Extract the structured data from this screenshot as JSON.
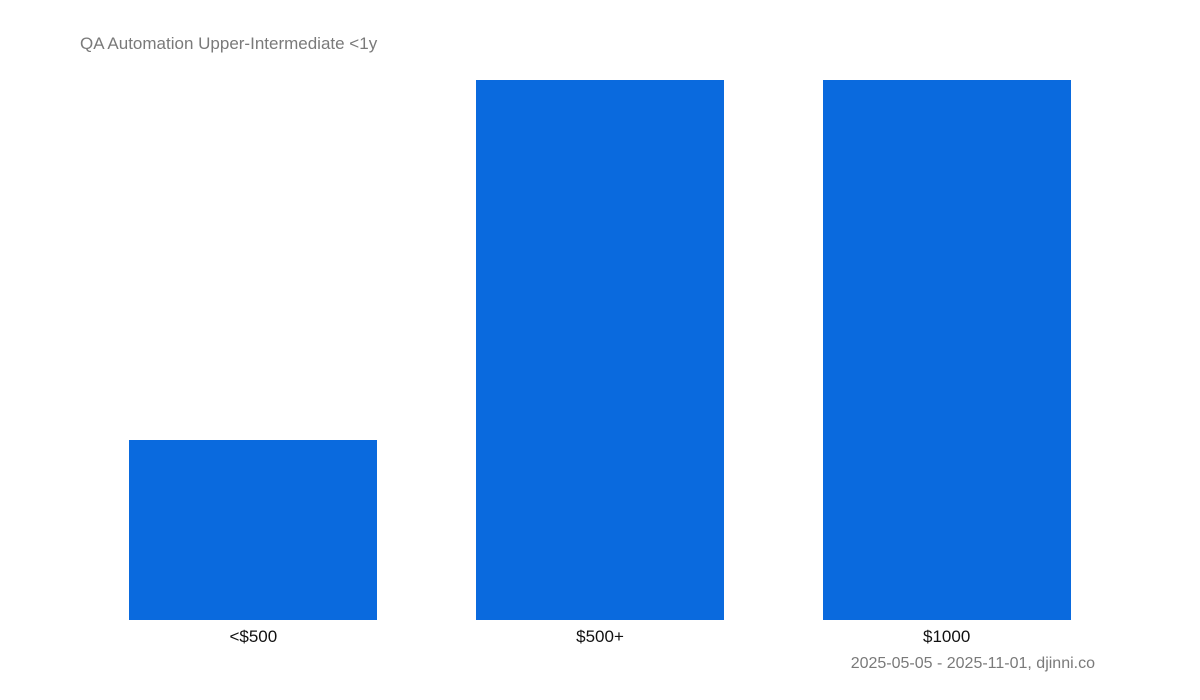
{
  "chart_data": {
    "type": "bar",
    "title": "QA Automation Upper-Intermediate <1y",
    "categories": [
      "<$500",
      "$500+",
      "$1000"
    ],
    "values": [
      1,
      3,
      3
    ],
    "xlabel": "",
    "ylabel": "",
    "ylim": [
      0,
      3
    ],
    "grid": false,
    "legend": null,
    "color": "#0a6ade",
    "footer": "2025-05-05 - 2025-11-01, djinni.co"
  }
}
